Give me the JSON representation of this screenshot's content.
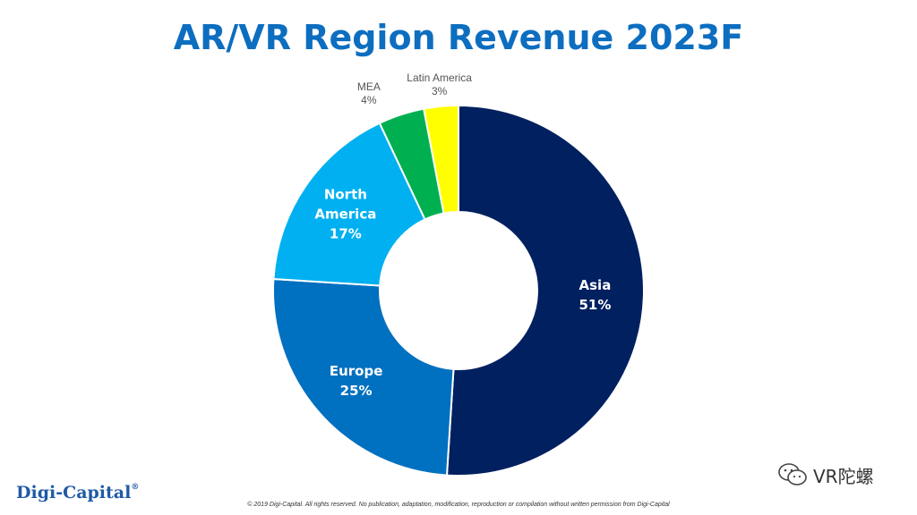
{
  "title": "AR/VR Region Revenue 2023F",
  "logo_text": "Digi-Capital",
  "logo_mark": "®",
  "copyright": "© 2019 Digi-Capital. All rights reserved. No publication, adaptation, modification, reproduction or compilation without written permission from Digi-Capital",
  "watermark_text": "VR陀螺",
  "colors": {
    "title": "#0d6ec0",
    "Asia": "#012060",
    "Europe": "#0070c0",
    "North America": "#00b0f0",
    "MEA": "#00b050",
    "Latin America": "#ffff00"
  },
  "chart_data": {
    "type": "pie",
    "donut": true,
    "title": "AR/VR Region Revenue 2023F",
    "categories": [
      "Asia",
      "Europe",
      "North America",
      "MEA",
      "Latin America"
    ],
    "values": [
      51,
      25,
      17,
      4,
      3
    ],
    "value_labels": [
      "51%",
      "25%",
      "17%",
      "4%",
      "3%"
    ],
    "unit": "%",
    "start": "12 o'clock",
    "direction": "clockwise",
    "legend": "none",
    "label_placement": {
      "Asia": "inside",
      "Europe": "inside",
      "North America": "inside",
      "MEA": "outside",
      "Latin America": "outside"
    }
  }
}
